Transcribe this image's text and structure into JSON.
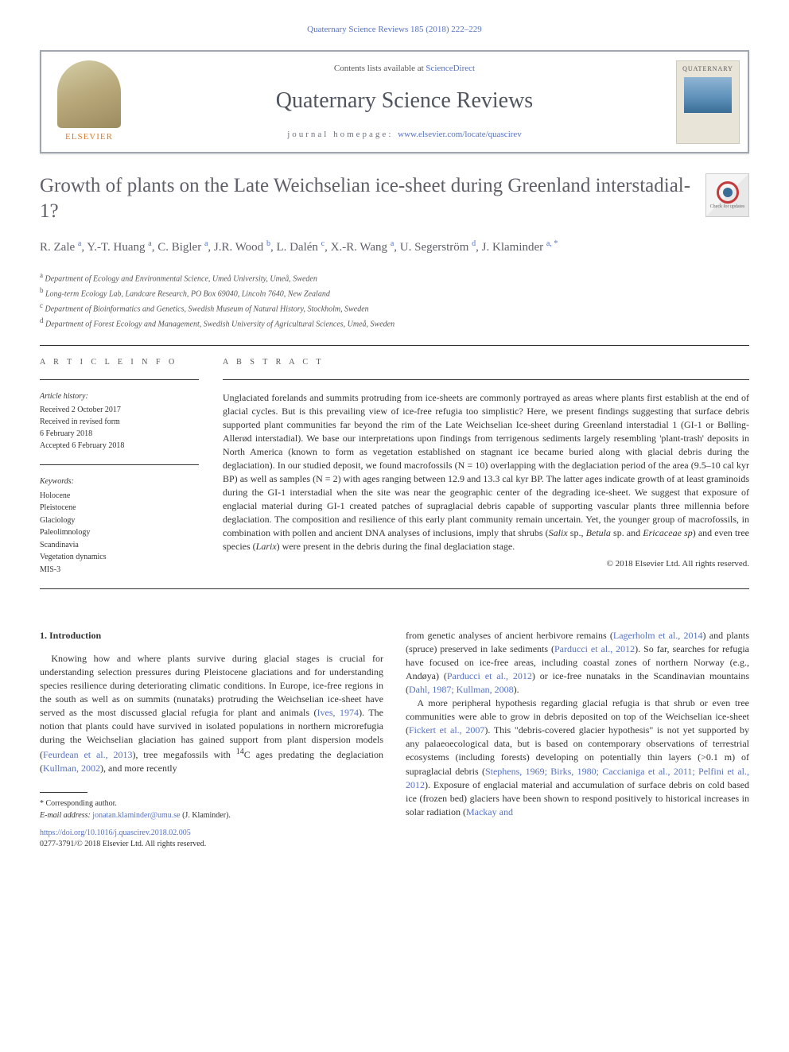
{
  "breadcrumb": "Quaternary Science Reviews 185 (2018) 222–229",
  "header": {
    "contents_pre": "Contents lists available at ",
    "contents_link": "ScienceDirect",
    "journal": "Quaternary Science Reviews",
    "homepage_label": "journal homepage: ",
    "homepage_url": "www.elsevier.com/locate/quascirev",
    "publisher": "ELSEVIER",
    "cover_title": "QUATERNARY"
  },
  "article": {
    "title": "Growth of plants on the Late Weichselian ice-sheet during Greenland interstadial-1?",
    "crossmark_label": "Check for updates",
    "authors_html": "R. Zale <sup>a</sup>, Y.-T. Huang <sup>a</sup>, C. Bigler <sup>a</sup>, J.R. Wood <sup>b</sup>, L. Dalén <sup>c</sup>, X.-R. Wang <sup>a</sup>, U. Segerström <sup>d</sup>, J. Klaminder <sup>a, *</sup>",
    "affiliations": [
      {
        "sup": "a",
        "text": "Department of Ecology and Environmental Science, Umeå University, Umeå, Sweden"
      },
      {
        "sup": "b",
        "text": "Long-term Ecology Lab, Landcare Research, PO Box 69040, Lincoln 7640, New Zealand"
      },
      {
        "sup": "c",
        "text": "Department of Bioinformatics and Genetics, Swedish Museum of Natural History, Stockholm, Sweden"
      },
      {
        "sup": "d",
        "text": "Department of Forest Ecology and Management, Swedish University of Agricultural Sciences, Umeå, Sweden"
      }
    ]
  },
  "info": {
    "label": "A R T I C L E   I N F O",
    "history_label": "Article history:",
    "history": [
      "Received 2 October 2017",
      "Received in revised form",
      "6 February 2018",
      "Accepted 6 February 2018"
    ],
    "keywords_label": "Keywords:",
    "keywords": [
      "Holocene",
      "Pleistocene",
      "Glaciology",
      "Paleolimnology",
      "Scandinavia",
      "Vegetation dynamics",
      "MIS-3"
    ]
  },
  "abstract": {
    "label": "A B S T R A C T",
    "text_html": "Unglaciated forelands and summits protruding from ice-sheets are commonly portrayed as areas where plants first establish at the end of glacial cycles. But is this prevailing view of ice-free refugia too simplistic? Here, we present findings suggesting that surface debris supported plant communities far beyond the rim of the Late Weichselian Ice-sheet during Greenland interstadial 1 (GI-1 or Bølling-Allerød interstadial). We base our interpretations upon findings from terrigenous sediments largely resembling 'plant-trash' deposits in North America (known to form as vegetation established on stagnant ice became buried along with glacial debris during the deglaciation). In our studied deposit, we found macrofossils (N = 10) overlapping with the deglaciation period of the area (9.5–10 cal kyr BP) as well as samples (N = 2) with ages ranging between 12.9 and 13.3 cal kyr BP. The latter ages indicate growth of at least graminoids during the GI-1 interstadial when the site was near the geographic center of the degrading ice-sheet. We suggest that exposure of englacial material during GI-1 created patches of supraglacial debris capable of supporting vascular plants three millennia before deglaciation. The composition and resilience of this early plant community remain uncertain. Yet, the younger group of macrofossils, in combination with pollen and ancient DNA analyses of inclusions, imply that shrubs (<i>Salix</i> sp., <i>Betula</i> sp. and <i>Ericaceae sp</i>) and even tree species (<i>Larix</i>) were present in the debris during the final deglaciation stage.",
    "copyright": "© 2018 Elsevier Ltd. All rights reserved."
  },
  "body": {
    "heading": "1.  Introduction",
    "col1_p1_html": "Knowing how and where plants survive during glacial stages is crucial for understanding selection pressures during Pleistocene glaciations and for understanding species resilience during deteriorating climatic conditions. In Europe, ice-free regions in the south as well as on summits (nunataks) protruding the Weichselian ice-sheet have served as the most discussed glacial refugia for plant and animals (<a>Ives, 1974</a>). The notion that plants could have survived in isolated populations in northern microrefugia during the Weichselian glaciation has gained support from plant dispersion models (<a>Feurdean et al., 2013</a>), tree megafossils with <sup>14</sup>C ages predating the deglaciation (<a>Kullman, 2002</a>), and more recently",
    "col2_p1_html": "from genetic analyses of ancient herbivore remains (<a>Lagerholm et al., 2014</a>) and plants (spruce) preserved in lake sediments (<a>Parducci et al., 2012</a>). So far, searches for refugia have focused on ice-free areas, including coastal zones of northern Norway (e.g., Andøya) (<a>Parducci et al., 2012</a>) or ice-free nunataks in the Scandinavian mountains (<a>Dahl, 1987; Kullman, 2008</a>).",
    "col2_p2_html": "A more peripheral hypothesis regarding glacial refugia is that shrub or even tree communities were able to grow in debris deposited on top of the Weichselian ice-sheet (<a>Fickert et al., 2007</a>). This \"debris-covered glacier hypothesis\" is not yet supported by any palaeoecological data, but is based on contemporary observations of terrestrial ecosystems (including forests) developing on potentially thin layers (>0.1 m) of supraglacial debris (<a>Stephens, 1969; Birks, 1980; Caccianiga et al., 2011; Pelfini et al., 2012</a>). Exposure of englacial material and accumulation of surface debris on cold based ice (frozen bed) glaciers have been shown to respond positively to historical increases in solar radiation (<a>Mackay and</a>"
  },
  "footer": {
    "corr_label": "* Corresponding author.",
    "email_label": "E-mail address: ",
    "email": "jonatan.klaminder@umu.se",
    "email_suffix": " (J. Klaminder).",
    "doi": "https://doi.org/10.1016/j.quascirev.2018.02.005",
    "issn": "0277-3791/© 2018 Elsevier Ltd. All rights reserved."
  },
  "colors": {
    "link": "#5572c4",
    "text": "#333333",
    "title": "#5e606a",
    "border": "#9fa6b0",
    "publisher_orange": "#d97b2f"
  }
}
